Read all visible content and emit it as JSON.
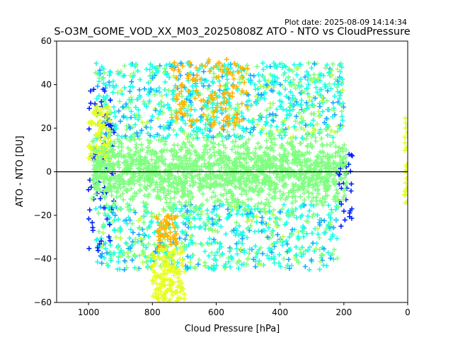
{
  "plot_date": "Plot date: 2025-08-09 14:14:34",
  "chart_data": {
    "type": "scatter",
    "title": "S-O3M_GOME_VOD_XX_M03_20250808Z ATO - NTO vs CloudPressure",
    "xlabel": "Cloud Pressure [hPa]",
    "ylabel": "ATO - NTO [DU]",
    "xlim": [
      1100,
      0
    ],
    "ylim": [
      -60,
      60
    ],
    "x_ticks": [
      1000,
      800,
      600,
      400,
      200,
      0
    ],
    "y_ticks": [
      -60,
      -40,
      -20,
      0,
      20,
      40,
      60
    ],
    "x_tick_labels": [
      "1000",
      "800",
      "600",
      "400",
      "200",
      "0"
    ],
    "y_tick_labels": [
      "−60",
      "−40",
      "−20",
      "0",
      "20",
      "40",
      "60"
    ],
    "reference_line_y": 0,
    "marker": "plus",
    "grid": false,
    "colors": {
      "dense_core": "#80ff80",
      "cyan": "#1affe6",
      "light_blue": "#19a8ff",
      "blue": "#0022ff",
      "yellow": "#e6ff1a",
      "orange": "#ffb400",
      "lime": "#b8ff48"
    },
    "clusters": [
      {
        "name": "core",
        "x_range": [
          990,
          190
        ],
        "y_range": [
          -22,
          22
        ],
        "color": "dense_core"
      },
      {
        "name": "upper-cloud",
        "x_range": [
          980,
          200
        ],
        "y_range": [
          15,
          50
        ],
        "color": "cyan"
      },
      {
        "name": "lower-cloud",
        "x_range": [
          980,
          220
        ],
        "y_range": [
          -45,
          -15
        ],
        "color": "cyan"
      },
      {
        "name": "orange-upper",
        "x_range": [
          740,
          500
        ],
        "y_range": [
          20,
          52
        ],
        "color": "orange"
      },
      {
        "name": "orange-lower",
        "x_range": [
          790,
          720
        ],
        "y_range": [
          -35,
          -20
        ],
        "color": "orange"
      },
      {
        "name": "yellow-tail",
        "x_range": [
          800,
          700
        ],
        "y_range": [
          -60,
          -35
        ],
        "color": "yellow"
      },
      {
        "name": "blue-edge-left",
        "x_range": [
          1000,
          920
        ],
        "y_range": [
          -37,
          38
        ],
        "color": "blue"
      },
      {
        "name": "blue-edge-right",
        "x_range": [
          220,
          170
        ],
        "y_range": [
          -25,
          10
        ],
        "color": "blue"
      },
      {
        "name": "yellow-left",
        "x_range": [
          1000,
          930
        ],
        "y_range": [
          5,
          30
        ],
        "color": "yellow"
      },
      {
        "name": "scatter-zero",
        "x_range": [
          10,
          0
        ],
        "y_range": [
          -15,
          25
        ],
        "color": "yellow"
      }
    ]
  }
}
